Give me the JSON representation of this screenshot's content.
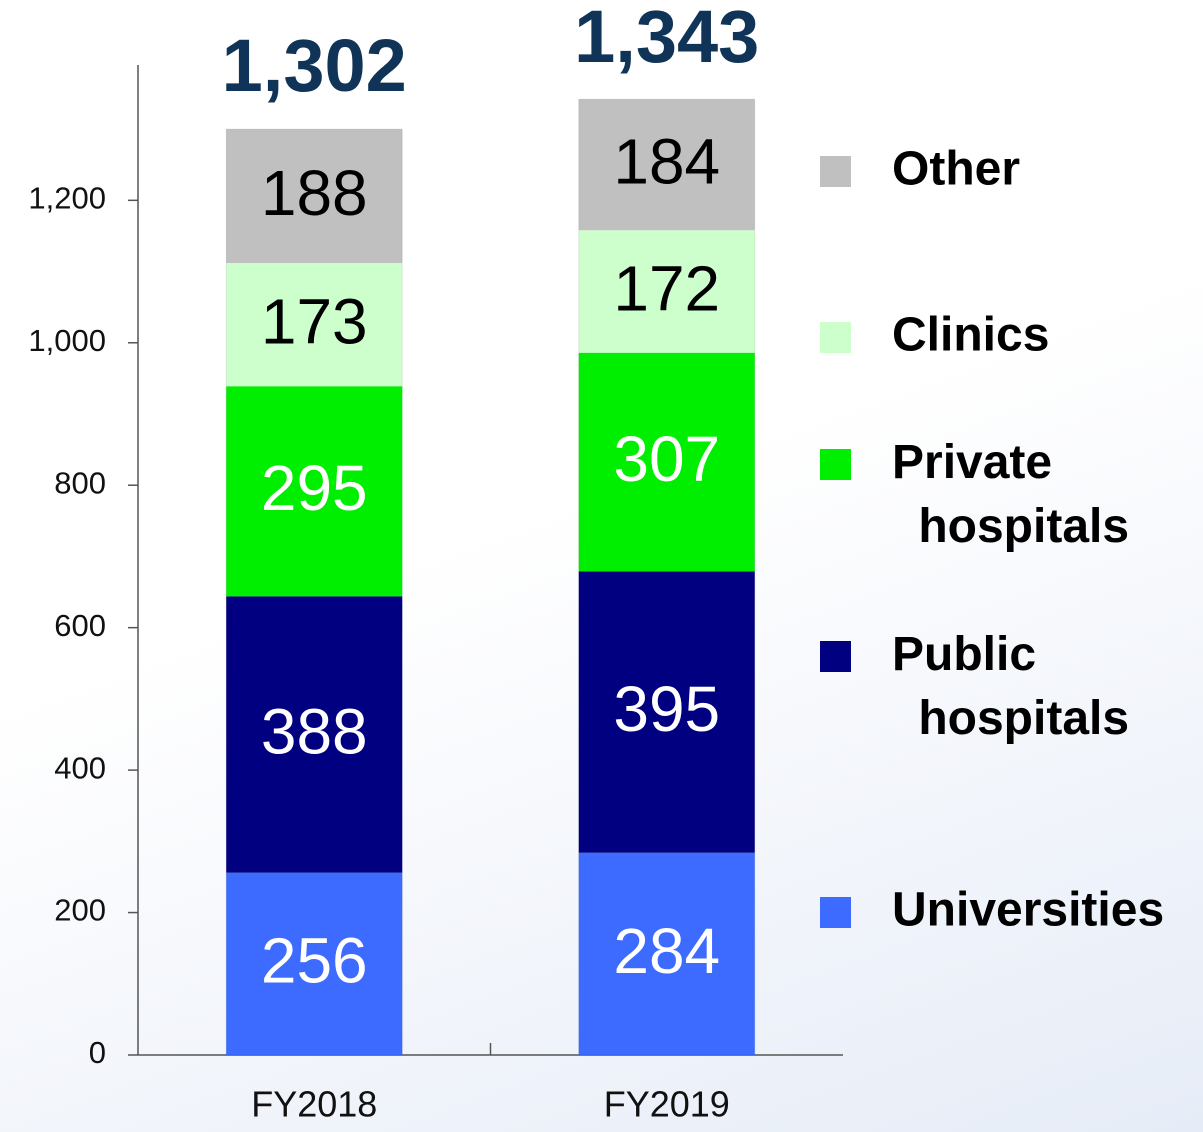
{
  "chart_data": {
    "type": "stacked-bar",
    "categories": [
      "FY2018",
      "FY2019"
    ],
    "series": [
      {
        "name": "Universities",
        "color": "#3d6bff",
        "values": [
          256,
          284
        ]
      },
      {
        "name": "Public hospitals",
        "color": "#000080",
        "values": [
          388,
          395
        ]
      },
      {
        "name": "Private hospitals",
        "color": "#00ee00",
        "values": [
          295,
          307
        ]
      },
      {
        "name": "Clinics",
        "color": "#ccffcc",
        "values": [
          173,
          172
        ]
      },
      {
        "name": "Other",
        "color": "#c0c0c0",
        "values": [
          188,
          184
        ]
      }
    ],
    "totals": [
      1302,
      1343
    ],
    "total_labels": [
      "1,302",
      "1,343"
    ],
    "ylim": [
      0,
      1390
    ],
    "yticks": [
      0,
      200,
      400,
      600,
      800,
      {
        "value": 1000,
        "label": "1,000"
      },
      {
        "value": 1200,
        "label": "1,200"
      }
    ],
    "grid": false,
    "legend": "right"
  }
}
